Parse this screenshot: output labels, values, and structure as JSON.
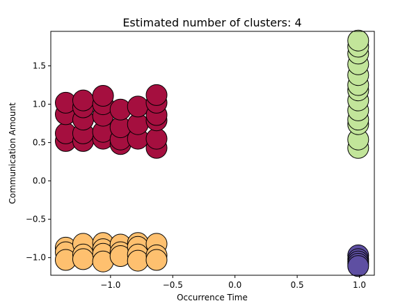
{
  "chart_data": {
    "type": "scatter",
    "title": "Estimated number of clusters: 4",
    "xlabel": "Occurrence Time",
    "ylabel": "Communication Amount",
    "xlim": [
      -1.48,
      1.12
    ],
    "ylim": [
      -1.23,
      1.95
    ],
    "x_ticks": [
      -1.0,
      -0.5,
      0.0,
      0.5,
      1.0
    ],
    "x_tick_labels": [
      "−1.0",
      "−0.5",
      "0.0",
      "0.5",
      "1.0"
    ],
    "y_ticks": [
      -1.0,
      -0.5,
      0.0,
      0.5,
      1.0,
      1.5
    ],
    "y_tick_labels": [
      "−1.0",
      "−0.5",
      "0.0",
      "0.5",
      "1.0",
      "1.5"
    ],
    "grid": false,
    "legend": "none",
    "marker_edge_color": "#000000",
    "series": [
      {
        "color": "#a50f3f",
        "points": [
          [
            -1.36,
            0.52
          ],
          [
            -1.36,
            0.62
          ],
          [
            -1.36,
            0.87
          ],
          [
            -1.36,
            1.02
          ],
          [
            -1.22,
            0.52
          ],
          [
            -1.22,
            0.62
          ],
          [
            -1.22,
            0.8
          ],
          [
            -1.22,
            0.96
          ],
          [
            -1.22,
            1.05
          ],
          [
            -1.06,
            0.55
          ],
          [
            -1.06,
            0.64
          ],
          [
            -1.06,
            0.85
          ],
          [
            -1.06,
            1.0
          ],
          [
            -1.06,
            1.11
          ],
          [
            -0.92,
            0.48
          ],
          [
            -0.92,
            0.54
          ],
          [
            -0.92,
            0.7
          ],
          [
            -0.92,
            0.93
          ],
          [
            -0.78,
            0.55
          ],
          [
            -0.78,
            0.74
          ],
          [
            -0.78,
            0.97
          ],
          [
            -0.63,
            0.43
          ],
          [
            -0.63,
            0.55
          ],
          [
            -0.63,
            0.79
          ],
          [
            -0.63,
            0.86
          ],
          [
            -0.63,
            1.02
          ],
          [
            -0.63,
            1.12
          ]
        ]
      },
      {
        "color": "#c2e59a",
        "points": [
          [
            0.99,
            0.43
          ],
          [
            0.99,
            0.54
          ],
          [
            0.99,
            0.74
          ],
          [
            0.99,
            0.8
          ],
          [
            0.99,
            0.92
          ],
          [
            0.99,
            1.05
          ],
          [
            0.99,
            1.18
          ],
          [
            0.99,
            1.25
          ],
          [
            0.99,
            1.38
          ],
          [
            0.99,
            1.52
          ],
          [
            0.99,
            1.66
          ],
          [
            0.99,
            1.75
          ],
          [
            0.99,
            1.83
          ]
        ]
      },
      {
        "color": "#fec06f",
        "points": [
          [
            -1.36,
            -0.87
          ],
          [
            -1.36,
            -0.93
          ],
          [
            -1.36,
            -1.03
          ],
          [
            -1.22,
            -0.82
          ],
          [
            -1.22,
            -0.96
          ],
          [
            -1.22,
            -1.02
          ],
          [
            -1.06,
            -0.81
          ],
          [
            -1.06,
            -0.89
          ],
          [
            -1.06,
            -0.95
          ],
          [
            -1.06,
            -1.05
          ],
          [
            -0.92,
            -0.83
          ],
          [
            -0.92,
            -0.93
          ],
          [
            -0.92,
            -0.98
          ],
          [
            -0.78,
            -0.81
          ],
          [
            -0.78,
            -0.86
          ],
          [
            -0.78,
            -0.96
          ],
          [
            -0.78,
            -1.04
          ],
          [
            -0.63,
            -0.82
          ],
          [
            -0.63,
            -0.97
          ],
          [
            -0.63,
            -1.03
          ]
        ]
      },
      {
        "color": "#5e4fa2",
        "points": [
          [
            0.99,
            -0.97
          ],
          [
            0.99,
            -1.02
          ],
          [
            0.99,
            -1.05
          ],
          [
            0.99,
            -1.08
          ],
          [
            0.99,
            -1.11
          ]
        ]
      }
    ]
  }
}
